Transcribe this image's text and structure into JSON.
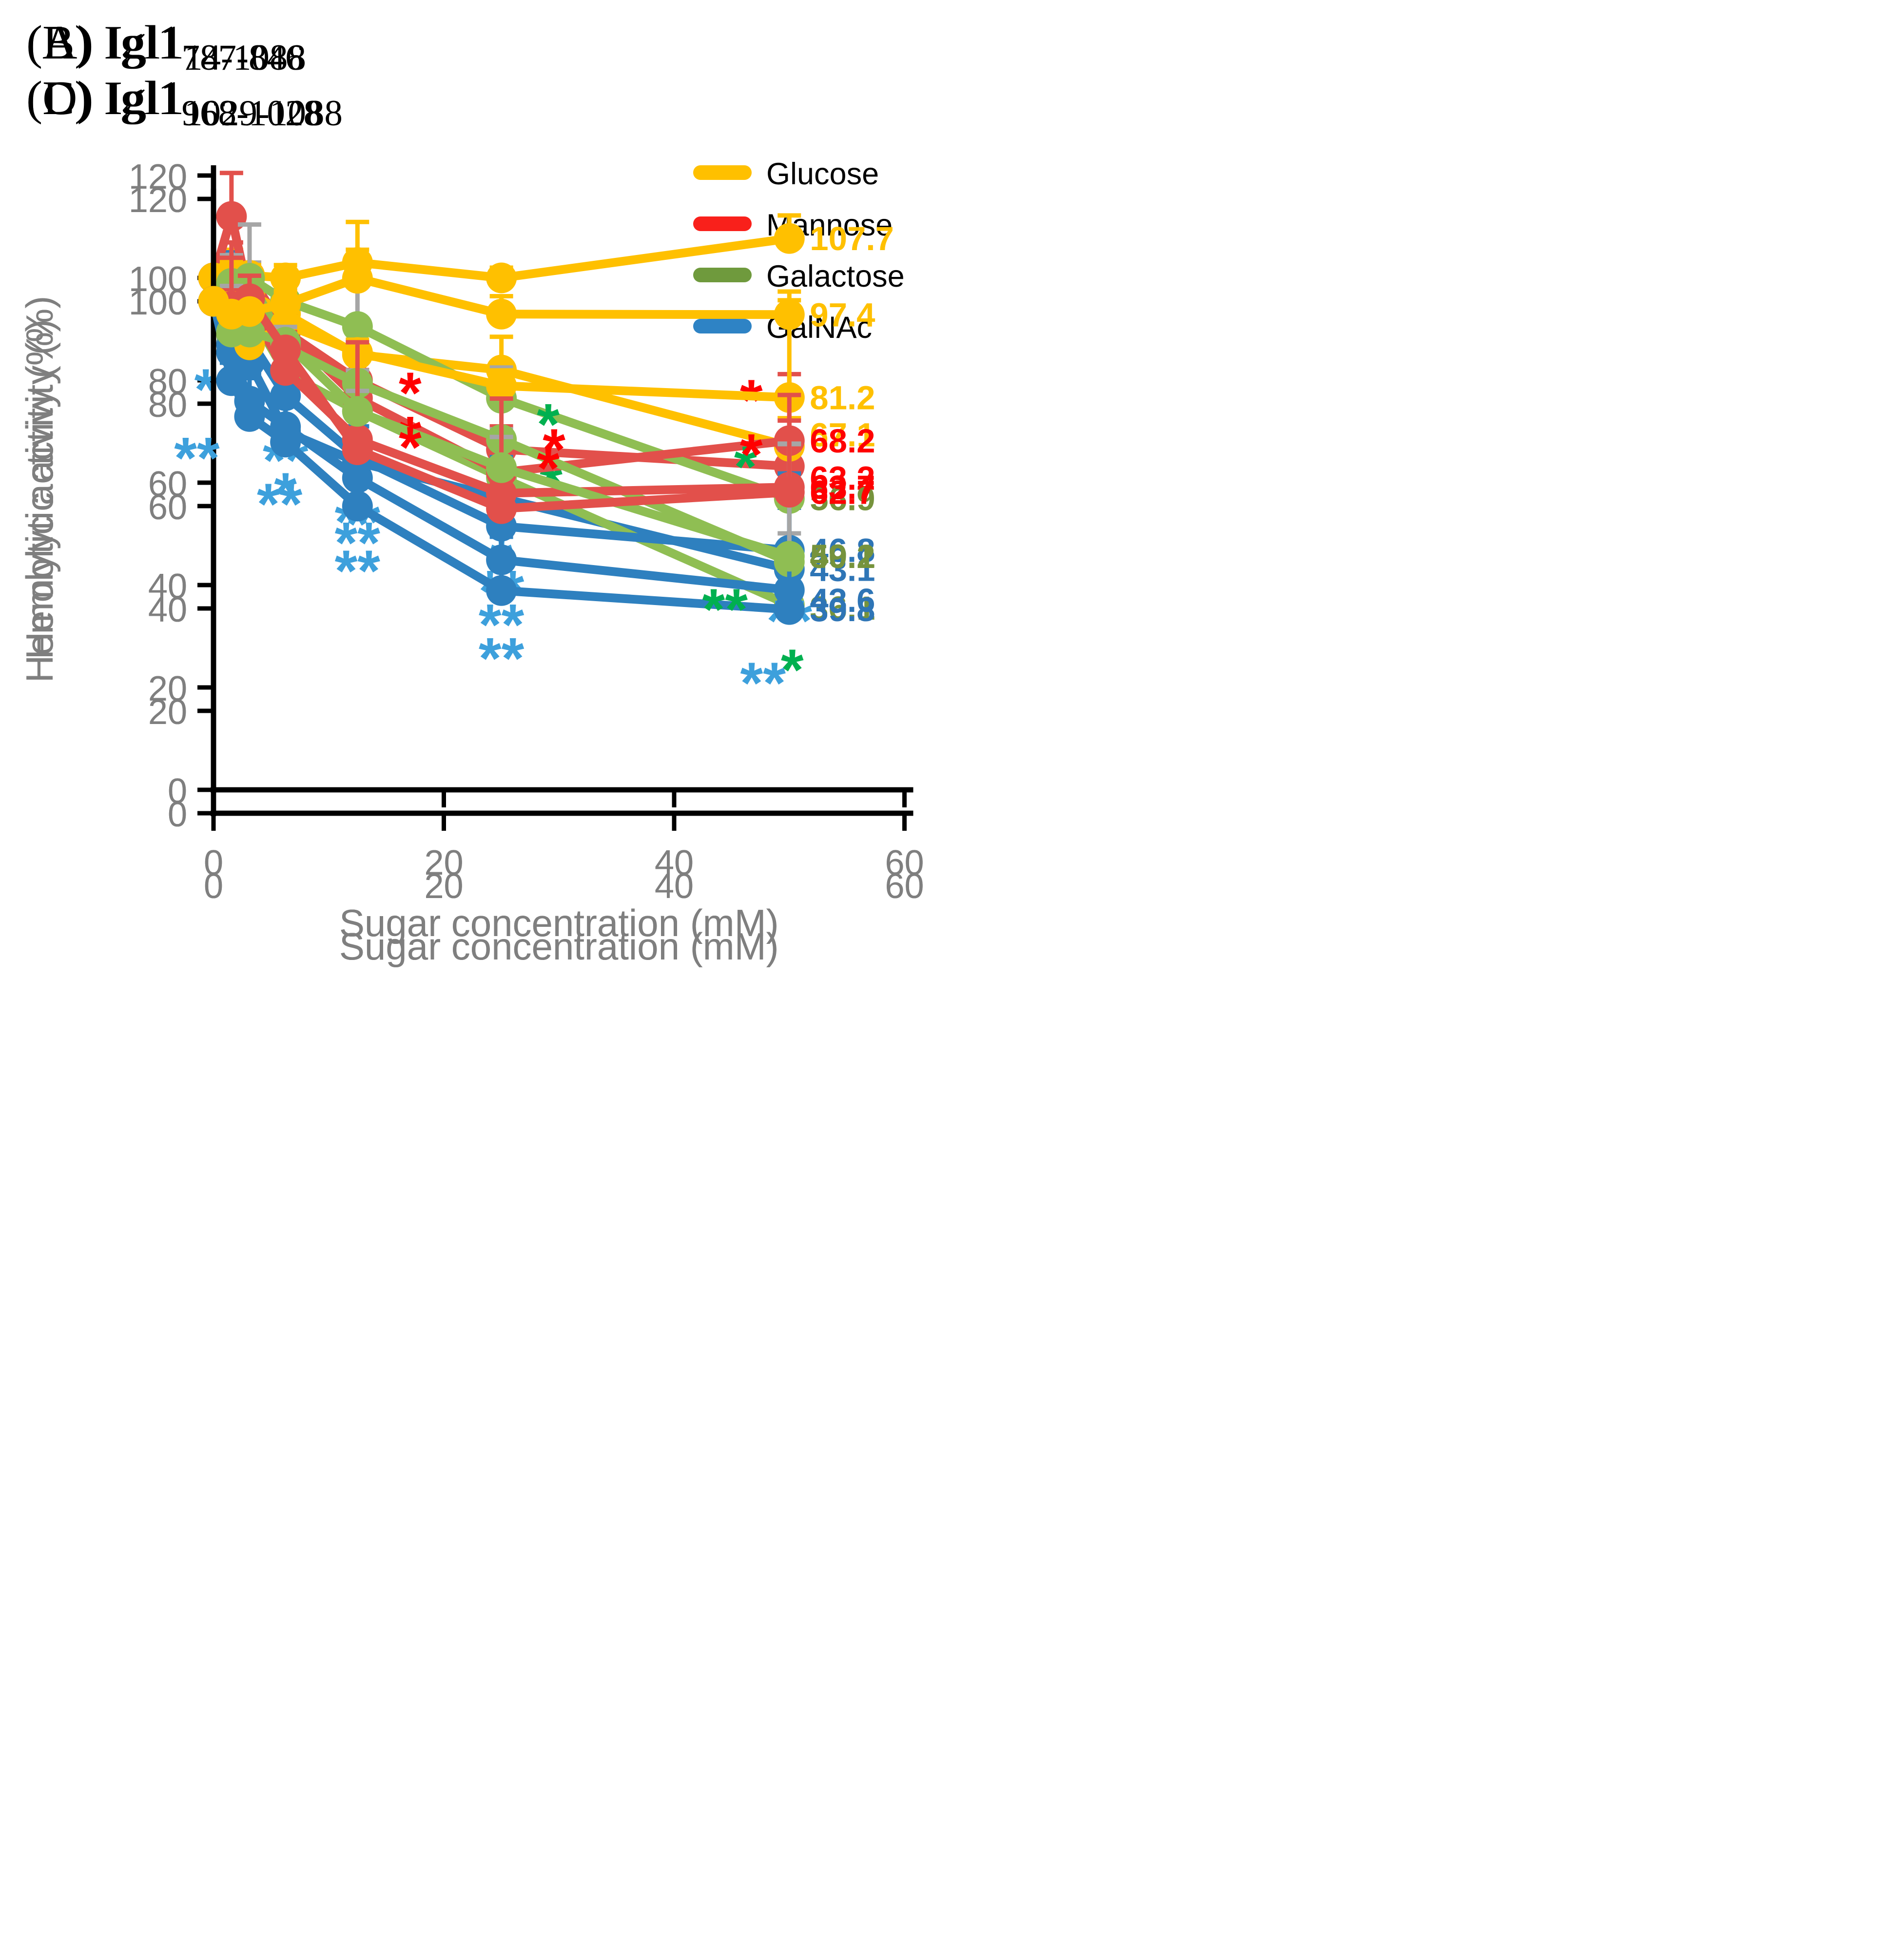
{
  "figure": {
    "xlabel": "Sugar concentration (mM)",
    "ylabel": "Hemolytic activity (%)",
    "x_ticks": [
      0,
      20,
      40,
      60
    ],
    "y_ticks": [
      0,
      20,
      40,
      60,
      80,
      100,
      120
    ],
    "xlim": [
      0,
      60
    ],
    "ylim": [
      0,
      122
    ],
    "axis_color": "#000000",
    "tick_label_color": "#7F7F7F",
    "grid": "off",
    "legend_position": "top-right-of-panel-A"
  },
  "legend": {
    "items": [
      {
        "label": "Glucose",
        "color": "#FFC000"
      },
      {
        "label": "Mannose",
        "color": "#F9201B"
      },
      {
        "label": "Galactose",
        "color": "#6F9A3D"
      },
      {
        "label": "GalNAc",
        "color": "#2E83C5"
      }
    ]
  },
  "chart_data": [
    {
      "panel_label": "(A)",
      "title_main": "Igl1",
      "title_sub": "14-1088",
      "type": "line",
      "legend": true,
      "x": [
        0,
        1.56,
        3.13,
        6.25,
        12.5,
        25,
        50
      ],
      "series": [
        {
          "name": "Glucose",
          "color": "#FFC000",
          "err_color": "#FFC000",
          "values": [
            100,
            100,
            97,
            93,
            85,
            82,
            67.1
          ],
          "errors": [
            0,
            5.5,
            2.5,
            1.5,
            0,
            6.5,
            5.5
          ],
          "end_label": "67.1",
          "end_label_color": "#FFC000",
          "end_label_dy": -8,
          "asterisks": []
        },
        {
          "name": "Mannose",
          "color": "#E2504B",
          "err_color": "#E2504B",
          "values": [
            100,
            98.5,
            100.5,
            89.5,
            80,
            66.5,
            63.2
          ],
          "errors": [
            0,
            3.5,
            2.5,
            2,
            2,
            4.5,
            5
          ],
          "end_label": "63.2",
          "end_label_color": "#FF0000",
          "end_label_dy": 8,
          "asterisks": []
        },
        {
          "name": "Galactose",
          "color": "#8FBE53",
          "err_color": "#A6A6A6",
          "values": [
            100,
            89,
            93.5,
            81.5,
            74,
            61,
            36.1
          ],
          "errors": [
            0,
            4,
            3,
            2.5,
            3.5,
            3,
            14
          ],
          "end_label": "36.1",
          "end_label_color": "#76933C",
          "end_label_dy": 2,
          "asterisks": [
            {
              "x": 25,
              "text": "*",
              "dx": 34,
              "dy": 18,
              "color": "#00B050"
            },
            {
              "x": 50,
              "text": "*",
              "dx": 2,
              "dy": 58,
              "color": "#00B050"
            }
          ]
        },
        {
          "name": "GalNAc",
          "color": "#2E80BF",
          "err_color": "#2E80BF",
          "values": [
            100,
            87,
            83.5,
            70,
            64,
            57,
            43.1
          ],
          "errors": [
            0,
            8,
            4,
            8,
            7,
            6.5,
            12
          ],
          "end_label": "43.1",
          "end_label_color": "#2E75B6",
          "end_label_dy": 0,
          "asterisks": [
            {
              "x": 6.25,
              "text": "*",
              "dx": 0,
              "dy": 56,
              "color": "#3DA0DC"
            },
            {
              "x": 12.5,
              "text": "*",
              "dx": 0,
              "dy": 56,
              "color": "#3DA0DC"
            },
            {
              "x": 25,
              "text": "*",
              "dx": 0,
              "dy": 56,
              "color": "#3DA0DC"
            }
          ]
        }
      ]
    },
    {
      "panel_label": "(B)",
      "title_main": "Igl1",
      "title_sub": "787-846",
      "type": "line",
      "legend": false,
      "x": [
        0,
        1.56,
        3.13,
        6.25,
        12.5,
        25,
        50
      ],
      "series": [
        {
          "name": "Glucose",
          "color": "#FFC000",
          "err_color": "#FFC000",
          "values": [
            100,
            101,
            100.5,
            100,
            103,
            100,
            107.7
          ],
          "errors": [
            0,
            2,
            2,
            2.5,
            2.5,
            2,
            4.5
          ],
          "end_label": "107.7",
          "end_label_color": "#FFC000",
          "end_label_dy": 0,
          "asterisks": []
        },
        {
          "name": "Mannose",
          "color": "#E2504B",
          "err_color": "#E2504B",
          "values": [
            100,
            112,
            96,
            90,
            76.5,
            62,
            68.2
          ],
          "errors": [
            0,
            8.5,
            3,
            2.5,
            13.5,
            4,
            13
          ],
          "end_label": "68.2",
          "end_label_color": "#FF0000",
          "end_label_dy": 0,
          "asterisks": [
            {
              "x": 12.5,
              "text": "*",
              "dx": 36,
              "dy": 10,
              "color": "#FF0000"
            },
            {
              "x": 25,
              "text": "*",
              "dx": 36,
              "dy": -2,
              "color": "#FF0000"
            },
            {
              "x": 50,
              "text": "*",
              "dx": -26,
              "dy": -14,
              "color": "#FF0000"
            }
          ]
        },
        {
          "name": "Galactose",
          "color": "#8FBE53",
          "err_color": "#A6A6A6",
          "values": [
            100,
            100.5,
            100,
            95.5,
            90.5,
            76.5,
            56.9
          ],
          "errors": [
            0,
            4,
            3,
            2.5,
            9.5,
            6,
            9.5
          ],
          "end_label": "56.9",
          "end_label_color": "#76933C",
          "end_label_dy": 0,
          "asterisks": [
            {
              "x": 50,
              "text": "*",
              "dx": -30,
              "dy": -8,
              "color": "#00B050"
            }
          ]
        },
        {
          "name": "GalNAc",
          "color": "#2E80BF",
          "err_color": "#2E80BF",
          "values": [
            100,
            97,
            88,
            77,
            65,
            51.5,
            46.8
          ],
          "errors": [
            0,
            8,
            7,
            7,
            10,
            13.5,
            15
          ],
          "end_label": "46.8",
          "end_label_color": "#2E75B6",
          "end_label_dy": 0,
          "asterisks": [
            {
              "x": 3.13,
              "text": "*",
              "dx": -30,
              "dy": 48,
              "color": "#3DA0DC"
            },
            {
              "x": 6.25,
              "text": "**",
              "dx": 0,
              "dy": 58,
              "color": "#3DA0DC"
            },
            {
              "x": 12.5,
              "text": "**",
              "dx": 0,
              "dy": 58,
              "color": "#3DA0DC"
            },
            {
              "x": 25,
              "text": "**",
              "dx": 0,
              "dy": 58,
              "color": "#3DA0DC"
            },
            {
              "x": 50,
              "text": "**",
              "dx": 0,
              "dy": 62,
              "color": "#3DA0DC"
            }
          ]
        }
      ]
    },
    {
      "panel_label": "(C)",
      "title_main": "Igl1",
      "title_sub": "968-1028",
      "type": "line",
      "legend": false,
      "x": [
        0,
        1.56,
        3.13,
        6.25,
        12.5,
        25,
        50
      ],
      "series": [
        {
          "name": "Glucose",
          "color": "#FFC000",
          "err_color": "#FFC000",
          "values": [
            100,
            99,
            91.5,
            95.5,
            90,
            83.5,
            81.2
          ],
          "errors": [
            0,
            9,
            2.5,
            6,
            2.5,
            3,
            19
          ],
          "end_label": "81.2",
          "end_label_color": "#FFC000",
          "end_label_dy": 0,
          "asterisks": []
        },
        {
          "name": "Mannose",
          "color": "#E2504B",
          "err_color": "#E2504B",
          "values": [
            100,
            100.5,
            98.5,
            86.5,
            73,
            62.5,
            63.7
          ],
          "errors": [
            0,
            11,
            3.5,
            3,
            4,
            3.5,
            13
          ],
          "end_label": "63.7",
          "end_label_color": "#FF0000",
          "end_label_dy": 0,
          "asterisks": [
            {
              "x": 12.5,
              "text": "*",
              "dx": 36,
              "dy": 12,
              "color": "#FF0000"
            }
          ]
        },
        {
          "name": "Galactose",
          "color": "#8FBE53",
          "err_color": "#A6A6A6",
          "values": [
            100,
            103.5,
            104.5,
            91,
            84,
            73,
            49.1
          ],
          "errors": [
            0,
            5.5,
            10.5,
            3.5,
            2.5,
            2,
            23
          ],
          "end_label": "49.1",
          "end_label_color": "#76933C",
          "end_label_dy": -4,
          "asterisks": []
        },
        {
          "name": "GalNAc",
          "color": "#2E80BF",
          "err_color": "#2E80BF",
          "values": [
            100,
            90,
            80.5,
            75.5,
            65.5,
            49.5,
            43.6
          ],
          "errors": [
            0,
            3,
            5.5,
            9.5,
            5,
            6,
            5
          ],
          "end_label": "43.6",
          "end_label_color": "#2E75B6",
          "end_label_dy": 7,
          "asterisks": [
            {
              "x": 12.5,
              "text": "**",
              "dx": 0,
              "dy": 58,
              "color": "#3DA0DC"
            },
            {
              "x": 25,
              "text": "**",
              "dx": 0,
              "dy": 58,
              "color": "#3DA0DC"
            }
          ]
        }
      ]
    },
    {
      "panel_label": "(D)",
      "title_main": "Igl1",
      "title_sub": "1029-1088",
      "type": "line",
      "legend": false,
      "x": [
        0,
        1.56,
        3.13,
        6.25,
        12.5,
        25,
        50
      ],
      "series": [
        {
          "name": "Glucose",
          "color": "#FFC000",
          "err_color": "#FFC000",
          "values": [
            100,
            97.5,
            98,
            99.5,
            104.5,
            97.5,
            97.4
          ],
          "errors": [
            0,
            4,
            2.5,
            2.5,
            11,
            3.5,
            4.5
          ],
          "end_label": "97.4",
          "end_label_color": "#FFC000",
          "end_label_dy": 0,
          "asterisks": []
        },
        {
          "name": "Mannose",
          "color": "#E2504B",
          "err_color": "#E2504B",
          "values": [
            100,
            99,
            100.5,
            90.5,
            71,
            59.5,
            62.7
          ],
          "errors": [
            0,
            9.5,
            4.5,
            3.5,
            21,
            21.5,
            19
          ],
          "end_label": "62.7",
          "end_label_color": "#FF0000",
          "end_label_dy": 0,
          "asterisks": [
            {
              "x": 12.5,
              "text": "*",
              "dx": 36,
              "dy": 12,
              "color": "#FF0000"
            },
            {
              "x": 25,
              "text": "*",
              "dx": 32,
              "dy": -14,
              "color": "#FF0000"
            },
            {
              "x": 50,
              "text": "*",
              "dx": -26,
              "dy": -12,
              "color": "#FF0000"
            }
          ]
        },
        {
          "name": "Galactose",
          "color": "#8FBE53",
          "err_color": "#A6A6A6",
          "values": [
            100,
            94,
            94,
            92,
            78.5,
            67.5,
            50.2
          ],
          "errors": [
            0,
            9,
            3,
            3,
            4,
            6,
            22
          ],
          "end_label": "50.2",
          "end_label_color": "#76933C",
          "end_label_dy": 0,
          "asterisks": [
            {
              "x": 25,
              "text": "*",
              "dx": 32,
              "dy": -16,
              "color": "#00B050"
            },
            {
              "x": 50,
              "text": "**",
              "dx": -44,
              "dy": 50,
              "color": "#00B050"
            }
          ]
        },
        {
          "name": "GalNAc",
          "color": "#2E80BF",
          "err_color": "#2E80BF",
          "values": [
            100,
            84.5,
            77.5,
            72.5,
            60,
            43.5,
            39.8
          ],
          "errors": [
            0,
            3.5,
            7.5,
            8,
            7,
            10.5,
            22
          ],
          "end_label": "39.8",
          "end_label_color": "#2E75B6",
          "end_label_dy": 0,
          "asterisks": [
            {
              "x": 3.13,
              "text": "**",
              "dx": -36,
              "dy": 42,
              "color": "#3DA0DC"
            },
            {
              "x": 6.25,
              "text": "**",
              "dx": -4,
              "dy": 56,
              "color": "#3DA0DC"
            },
            {
              "x": 12.5,
              "text": "**",
              "dx": 0,
              "dy": 58,
              "color": "#3DA0DC"
            },
            {
              "x": 25,
              "text": "**",
              "dx": 0,
              "dy": 60,
              "color": "#3DA0DC"
            },
            {
              "x": 50,
              "text": "**",
              "dx": -18,
              "dy": 64,
              "color": "#3DA0DC"
            }
          ]
        }
      ]
    }
  ]
}
